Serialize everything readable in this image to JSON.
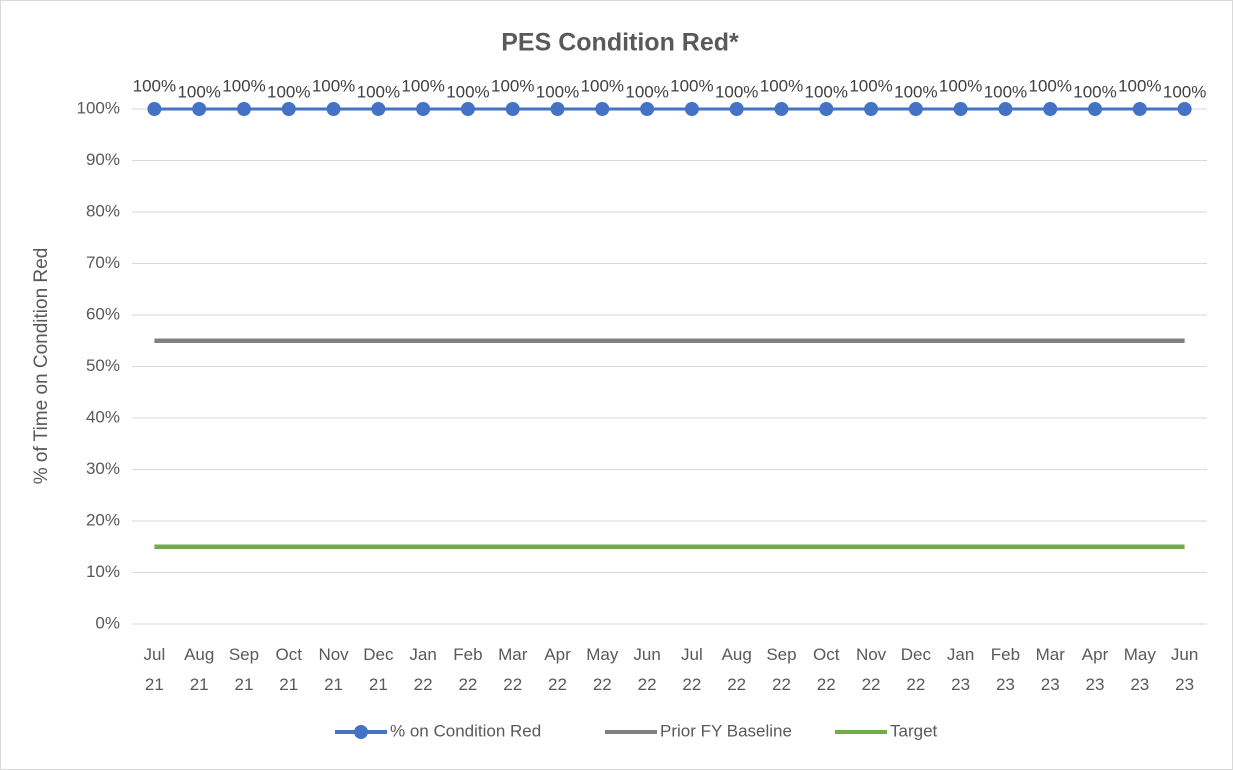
{
  "chart_data": {
    "type": "line",
    "title": "PES Condition Red*",
    "y_label": "% of Time on Condition Red",
    "categories": [
      "Jul 21",
      "Aug 21",
      "Sep 21",
      "Oct 21",
      "Nov 21",
      "Dec 21",
      "Jan 22",
      "Feb 22",
      "Mar 22",
      "Apr 22",
      "May 22",
      "Jun 22",
      "Jul 22",
      "Aug 22",
      "Sep 22",
      "Oct 22",
      "Nov 22",
      "Dec 22",
      "Jan 23",
      "Feb 23",
      "Mar 23",
      "Apr 23",
      "May 23",
      "Jun 23"
    ],
    "series": [
      {
        "name": "% on Condition Red",
        "color": "#4472c4",
        "markers": true,
        "values": [
          100,
          100,
          100,
          100,
          100,
          100,
          100,
          100,
          100,
          100,
          100,
          100,
          100,
          100,
          100,
          100,
          100,
          100,
          100,
          100,
          100,
          100,
          100,
          100
        ],
        "value_labels": [
          "100%",
          "100%",
          "100%",
          "100%",
          "100%",
          "100%",
          "100%",
          "100%",
          "100%",
          "100%",
          "100%",
          "100%",
          "100%",
          "100%",
          "100%",
          "100%",
          "100%",
          "100%",
          "100%",
          "100%",
          "100%",
          "100%",
          "100%",
          "100%"
        ]
      },
      {
        "name": "Prior FY Baseline",
        "color": "#808080",
        "markers": false,
        "values": [
          55,
          55,
          55,
          55,
          55,
          55,
          55,
          55,
          55,
          55,
          55,
          55,
          55,
          55,
          55,
          55,
          55,
          55,
          55,
          55,
          55,
          55,
          55,
          55
        ]
      },
      {
        "name": "Target",
        "color": "#70ad47",
        "markers": false,
        "values": [
          15,
          15,
          15,
          15,
          15,
          15,
          15,
          15,
          15,
          15,
          15,
          15,
          15,
          15,
          15,
          15,
          15,
          15,
          15,
          15,
          15,
          15,
          15,
          15
        ]
      }
    ],
    "ylim": [
      0,
      100
    ],
    "yticks": [
      {
        "value": 0,
        "label": "0%"
      },
      {
        "value": 10,
        "label": "10%"
      },
      {
        "value": 20,
        "label": "20%"
      },
      {
        "value": 30,
        "label": "30%"
      },
      {
        "value": 40,
        "label": "40%"
      },
      {
        "value": 50,
        "label": "50%"
      },
      {
        "value": 60,
        "label": "60%"
      },
      {
        "value": 70,
        "label": "70%"
      },
      {
        "value": 80,
        "label": "80%"
      },
      {
        "value": 90,
        "label": "90%"
      },
      {
        "value": 100,
        "label": "100%"
      }
    ],
    "grid": true,
    "legend": "bottom"
  }
}
